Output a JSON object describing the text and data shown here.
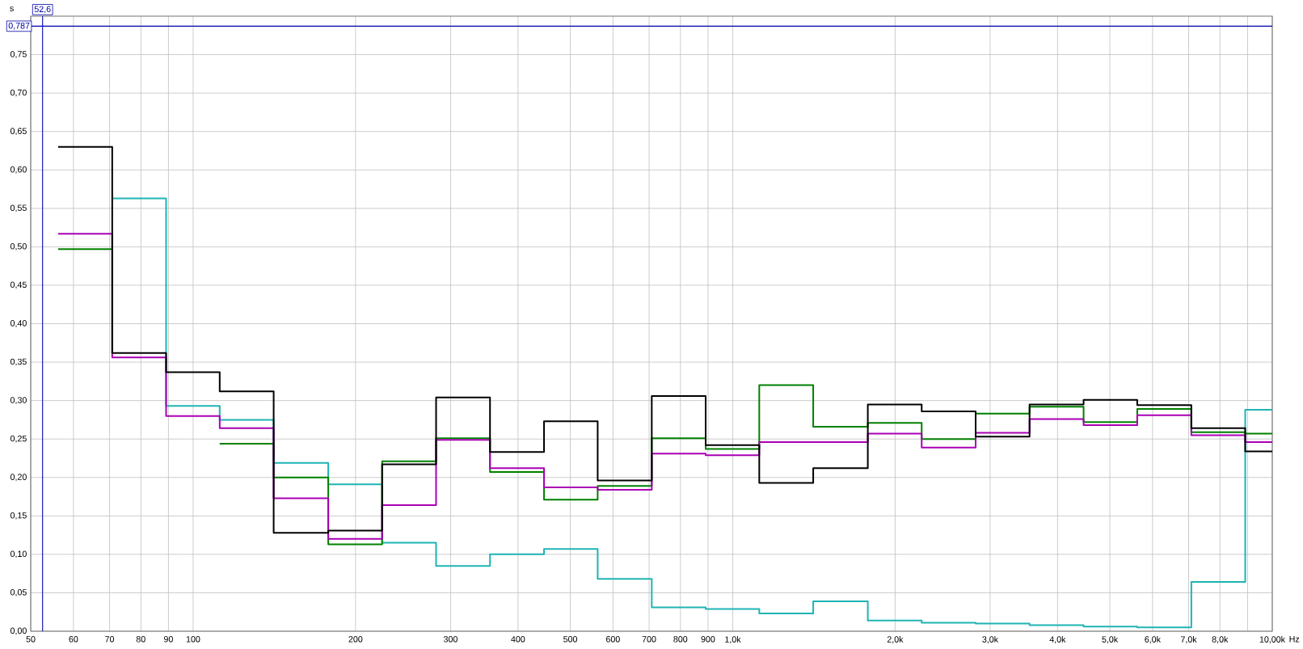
{
  "chart_data": {
    "type": "step",
    "ylabel": "s",
    "xlabel": "Hz",
    "log": "x",
    "grid": true,
    "marker": "none",
    "line_style": "solid",
    "x": [
      56.2,
      70.8,
      89.1,
      112,
      141,
      178,
      224,
      282,
      355,
      447,
      562,
      708,
      891,
      1120,
      1410,
      1780,
      2240,
      2820,
      3550,
      4470,
      5620,
      7080,
      8910,
      10000
    ],
    "xlim": [
      50,
      10000
    ],
    "xticks": [
      {
        "value": 50,
        "label": "50"
      },
      60,
      70,
      80,
      90,
      100,
      200,
      300,
      400,
      500,
      600,
      700,
      800,
      900,
      {
        "value": 1000,
        "label": "1,0k"
      },
      {
        "value": 2000,
        "label": "2,0k"
      },
      {
        "value": 3000,
        "label": "3,0k"
      },
      {
        "value": 4000,
        "label": "4,0k"
      },
      {
        "value": 5000,
        "label": "5,0k"
      },
      {
        "value": 6000,
        "label": "6,0k"
      },
      {
        "value": 7000,
        "label": "7,0k"
      },
      {
        "value": 8000,
        "label": "8,0k"
      },
      {
        "value": 9000,
        "label": null
      },
      {
        "value": 10000,
        "label": "10,00k"
      }
    ],
    "ylim": [
      0,
      0.8
    ],
    "yticks": [
      {
        "value": 0,
        "label": "0,00"
      },
      {
        "value": 0.05,
        "label": "0,05"
      },
      {
        "value": 0.1,
        "label": "0,10"
      },
      {
        "value": 0.15,
        "label": "0,15"
      },
      {
        "value": 0.2,
        "label": "0,20"
      },
      {
        "value": 0.25,
        "label": "0,25"
      },
      {
        "value": 0.3,
        "label": "0,30"
      },
      {
        "value": 0.35,
        "label": "0,35"
      },
      {
        "value": 0.4,
        "label": "0,40"
      },
      {
        "value": 0.45,
        "label": "0,45"
      },
      {
        "value": 0.5,
        "label": "0,50"
      },
      {
        "value": 0.55,
        "label": "0,55"
      },
      {
        "value": 0.6,
        "label": "0,60"
      },
      {
        "value": 0.65,
        "label": "0,65"
      },
      {
        "value": 0.7,
        "label": "0,70"
      },
      {
        "value": 0.75,
        "label": "0,75"
      }
    ],
    "series": [
      {
        "color": "#1fb4b4",
        "values": [
          null,
          0.563,
          0.293,
          0.275,
          0.219,
          0.191,
          0.115,
          0.085,
          0.1,
          0.107,
          0.068,
          0.031,
          0.029,
          0.023,
          0.039,
          0.014,
          0.011,
          0.01,
          0.008,
          0.006,
          0.005,
          0.064,
          0.288,
          0.288
        ]
      },
      {
        "color": "#008000",
        "values": [
          0.497,
          null,
          null,
          0.244,
          0.2,
          0.113,
          0.221,
          0.251,
          0.207,
          0.171,
          0.189,
          0.251,
          0.237,
          0.32,
          0.266,
          0.271,
          0.25,
          0.283,
          0.292,
          0.272,
          0.289,
          0.259,
          0.257,
          0.257
        ]
      },
      {
        "color": "#aa00b4",
        "values": [
          0.517,
          0.356,
          0.28,
          0.264,
          0.173,
          0.12,
          0.164,
          0.249,
          0.212,
          0.187,
          0.184,
          0.231,
          0.229,
          0.246,
          0.246,
          0.257,
          0.239,
          0.258,
          0.276,
          0.268,
          0.281,
          0.255,
          0.246,
          0.246
        ]
      },
      {
        "color": "#000000",
        "values": [
          0.63,
          0.362,
          0.337,
          0.312,
          0.128,
          0.131,
          0.217,
          0.304,
          0.233,
          0.273,
          0.196,
          0.306,
          0.242,
          0.193,
          0.212,
          0.295,
          0.286,
          0.253,
          0.295,
          0.301,
          0.294,
          0.264,
          0.234,
          0.234
        ]
      }
    ],
    "ref_lines": [
      {
        "axis": "x",
        "value": 52.6,
        "label": "52,6",
        "color": "#0000aa"
      },
      {
        "axis": "y",
        "value": 0.787,
        "label": "0,787",
        "color": "#0000aa"
      }
    ]
  }
}
